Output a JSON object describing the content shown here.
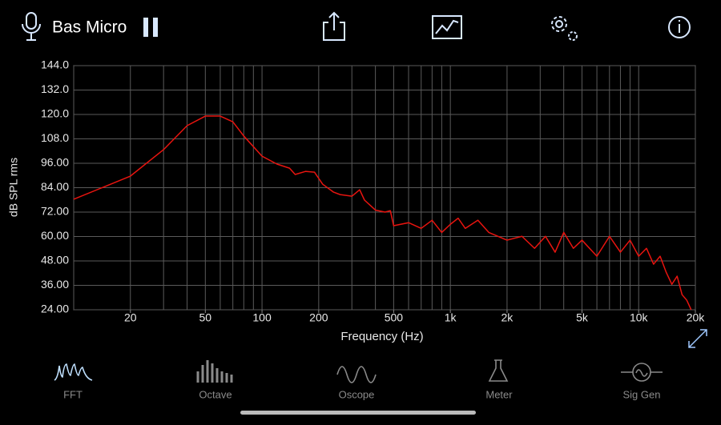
{
  "header": {
    "title": "Bas Micro"
  },
  "chart_data": {
    "type": "line",
    "log_x": true,
    "grid": true,
    "color": "#e8140f",
    "ylabel": "dB SPL rms",
    "xlabel": "Frequency (Hz)",
    "xlim": [
      10,
      20000
    ],
    "ylim": [
      24,
      144
    ],
    "xticks": [
      20,
      50,
      100,
      200,
      500,
      {
        "value": 1000,
        "label": "1k"
      },
      {
        "value": 2000,
        "label": "2k"
      },
      {
        "value": 5000,
        "label": "5k"
      },
      {
        "value": 10000,
        "label": "10k"
      },
      {
        "value": 20000,
        "label": "20k"
      }
    ],
    "yticks": [
      {
        "value": 24,
        "label": "24.00"
      },
      {
        "value": 36,
        "label": "36.00"
      },
      {
        "value": 48,
        "label": "48.00"
      },
      {
        "value": 60,
        "label": "60.00"
      },
      {
        "value": 72,
        "label": "72.00"
      },
      {
        "value": 84,
        "label": "84.00"
      },
      {
        "value": 96,
        "label": "96.00"
      },
      {
        "value": 108,
        "label": "108.0"
      },
      {
        "value": 120,
        "label": "120.0"
      },
      {
        "value": 132,
        "label": "132.0"
      },
      {
        "value": 144,
        "label": "144.0"
      }
    ],
    "x_gridlines": [
      10,
      20,
      30,
      40,
      50,
      60,
      70,
      80,
      90,
      100,
      200,
      300,
      400,
      500,
      600,
      700,
      800,
      900,
      1000,
      2000,
      3000,
      4000,
      5000,
      6000,
      7000,
      8000,
      9000,
      10000,
      20000
    ],
    "x": [
      10,
      20,
      30,
      40,
      50,
      60,
      70,
      80,
      100,
      120,
      140,
      150,
      170,
      190,
      210,
      240,
      260,
      300,
      330,
      350,
      400,
      450,
      480,
      500,
      600,
      700,
      800,
      900,
      1000,
      1100,
      1200,
      1400,
      1600,
      2000,
      2400,
      2800,
      3200,
      3600,
      4000,
      4500,
      5000,
      6000,
      7000,
      8000,
      9000,
      10000,
      11000,
      12000,
      13000,
      14000,
      15000,
      16000,
      17000,
      18000,
      19000
    ],
    "values": [
      78.3,
      89.7,
      102.7,
      114.5,
      119.2,
      119.2,
      116.4,
      109.4,
      99.5,
      95.6,
      93.6,
      90.5,
      92,
      91.6,
      85.7,
      81.8,
      80.6,
      79.8,
      83,
      77.9,
      73,
      72,
      72.7,
      65.3,
      66.8,
      64,
      68,
      62,
      66,
      69,
      64,
      68,
      62,
      58.2,
      60.1,
      54.2,
      60.1,
      52.3,
      62,
      54.2,
      58.2,
      50.3,
      60.1,
      52.3,
      58.2,
      50.3,
      54.2,
      46.4,
      50.3,
      42.4,
      36.5,
      40.5,
      31.4,
      28.7,
      24
    ]
  },
  "tabs": [
    "FFT",
    "Octave",
    "Oscope",
    "Meter",
    "Sig Gen"
  ]
}
